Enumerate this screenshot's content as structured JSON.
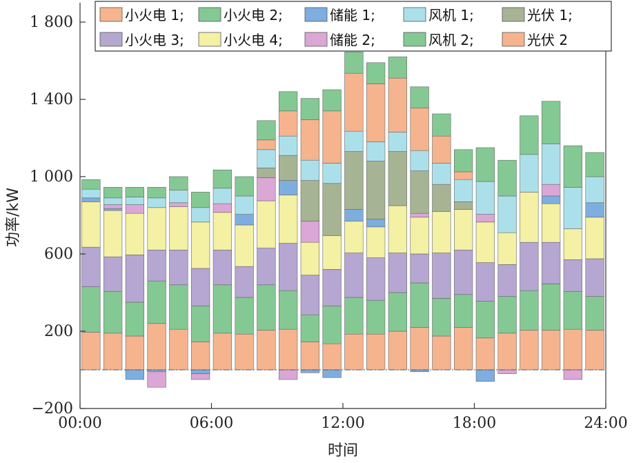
{
  "chart_data": {
    "type": "bar",
    "stacked": true,
    "xlabel": "时间",
    "ylabel": "功率/kW",
    "ylim": [
      -200,
      1900
    ],
    "xlim": [
      0,
      24
    ],
    "yticks": [
      -200,
      200,
      600,
      1000,
      1400,
      1800
    ],
    "ytick_labels": [
      "−200",
      "200",
      "600",
      "1 000",
      "1 400",
      "1 800"
    ],
    "xticks": [
      0,
      6,
      12,
      18,
      24
    ],
    "xtick_labels": [
      "00:00",
      "06:00",
      "12:00",
      "18:00",
      "24:00"
    ],
    "grid": false,
    "legend_position": "top",
    "zero_line": "dash-dot",
    "hours": [
      1,
      2,
      3,
      4,
      5,
      6,
      7,
      8,
      9,
      10,
      11,
      12,
      13,
      14,
      15,
      16,
      17,
      18,
      19,
      20,
      21,
      22,
      23,
      24
    ],
    "series": [
      {
        "name": "小火电 1;",
        "color": "#f5b48e",
        "values": [
          195,
          190,
          175,
          240,
          210,
          145,
          190,
          185,
          205,
          210,
          145,
          135,
          185,
          185,
          200,
          220,
          175,
          220,
          165,
          190,
          205,
          205,
          210,
          205
        ]
      },
      {
        "name": "小火电 2;",
        "color": "#84c993",
        "values": [
          235,
          215,
          175,
          220,
          230,
          185,
          250,
          190,
          235,
          200,
          140,
          195,
          190,
          175,
          200,
          230,
          195,
          170,
          190,
          190,
          205,
          240,
          195,
          175
        ]
      },
      {
        "name": "小火电 3;",
        "color": "#b6a6d2",
        "values": [
          205,
          180,
          245,
          160,
          180,
          195,
          180,
          160,
          190,
          245,
          205,
          190,
          230,
          220,
          205,
          150,
          235,
          230,
          200,
          165,
          250,
          215,
          165,
          195
        ]
      },
      {
        "name": "小火电 4;",
        "color": "#f4f0a4",
        "values": [
          235,
          240,
          215,
          220,
          225,
          240,
          195,
          215,
          245,
          250,
          170,
          175,
          165,
          160,
          245,
          190,
          215,
          210,
          210,
          165,
          260,
          200,
          160,
          215
        ]
      },
      {
        "name": "储能 1;",
        "color": "#7eaee0",
        "values": [
          20,
          10,
          -50,
          -10,
          0,
          -20,
          0,
          55,
          0,
          75,
          -15,
          -40,
          60,
          40,
          0,
          -10,
          0,
          0,
          -60,
          0,
          0,
          40,
          0,
          75
        ]
      },
      {
        "name": "储能 2;",
        "color": "#dba7d6",
        "values": [
          0,
          20,
          45,
          -80,
          20,
          -30,
          45,
          0,
          120,
          -50,
          110,
          0,
          0,
          0,
          0,
          20,
          0,
          0,
          40,
          -20,
          0,
          60,
          -50,
          0
        ]
      },
      {
        "name": "风机 1;",
        "color": "#abe0ea",
        "values": [
          45,
          35,
          40,
          50,
          65,
          75,
          80,
          95,
          95,
          100,
          105,
          105,
          105,
          100,
          100,
          105,
          110,
          115,
          170,
          190,
          195,
          210,
          215,
          135
        ]
      },
      {
        "name": "光伏 1;",
        "color": "#a6b494",
        "values": [
          0,
          0,
          0,
          0,
          0,
          0,
          0,
          0,
          50,
          130,
          210,
          270,
          300,
          300,
          280,
          220,
          140,
          40,
          0,
          0,
          0,
          0,
          0,
          0
        ]
      },
      {
        "name": "风机 2;",
        "color": "#84c993",
        "values": [
          50,
          55,
          50,
          55,
          70,
          80,
          95,
          100,
          100,
          100,
          110,
          110,
          110,
          110,
          110,
          110,
          115,
          115,
          175,
          185,
          200,
          220,
          215,
          125
        ]
      },
      {
        "name": "光伏 2",
        "color": "#f5b48e",
        "values": [
          0,
          0,
          0,
          0,
          0,
          0,
          0,
          0,
          50,
          130,
          210,
          270,
          300,
          300,
          280,
          220,
          140,
          40,
          0,
          0,
          0,
          0,
          0,
          0
        ]
      }
    ],
    "stack_order": [
      "小火电 1;",
      "小火电 2;",
      "小火电 3;",
      "小火电 4;",
      "储能 1;",
      "储能 2;",
      "光伏 1;",
      "风机 1;",
      "光伏 2",
      "风机 2;"
    ],
    "legend_order": [
      [
        "小火电 1;",
        "小火电 2;",
        "储能 1;",
        "风机 1;",
        "光伏 1;"
      ],
      [
        "小火电 3;",
        "小火电 4;",
        "储能 2;",
        "风机 2;",
        "光伏 2"
      ]
    ],
    "legend_colors": {
      "小火电 1;": "#f5b48e",
      "小火电 2;": "#84c993",
      "储能 1;": "#7eaee0",
      "风机 1;": "#abe0ea",
      "光伏 1;": "#a6b494",
      "小火电 3;": "#b6a6d2",
      "小火电 4;": "#f4f0a4",
      "储能 2;": "#dba7d6",
      "风机 2;": "#84c993",
      "光伏 2": "#f5b48e"
    }
  }
}
